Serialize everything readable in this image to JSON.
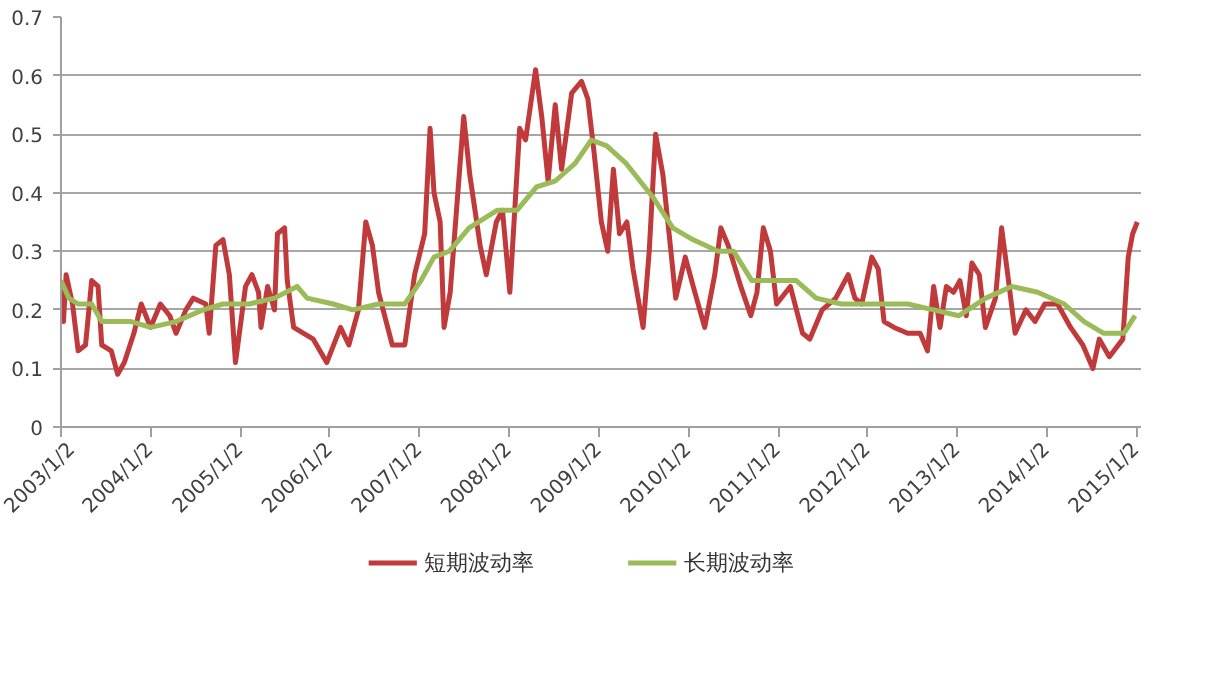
{
  "chart_data": {
    "type": "line",
    "xlim": [
      "2003-01-02",
      "2015-01-20"
    ],
    "ylim": [
      0,
      0.7
    ],
    "xticks": [
      {
        "value": "2003-01-02",
        "label": "2003/1/2"
      },
      {
        "value": "2004-01-02",
        "label": "2004/1/2"
      },
      {
        "value": "2005-01-02",
        "label": "2005/1/2"
      },
      {
        "value": "2006-01-02",
        "label": "2006/1/2"
      },
      {
        "value": "2007-01-02",
        "label": "2007/1/2"
      },
      {
        "value": "2008-01-02",
        "label": "2008/1/2"
      },
      {
        "value": "2009-01-02",
        "label": "2009/1/2"
      },
      {
        "value": "2010-01-02",
        "label": "2010/1/2"
      },
      {
        "value": "2011-01-02",
        "label": "2011/1/2"
      },
      {
        "value": "2012-01-02",
        "label": "2012/1/2"
      },
      {
        "value": "2013-01-02",
        "label": "2013/1/2"
      },
      {
        "value": "2014-01-02",
        "label": "2014/1/2"
      },
      {
        "value": "2015-01-02",
        "label": "2015/1/2"
      }
    ],
    "yticks": [
      0,
      0.1,
      0.2,
      0.3,
      0.4,
      0.5,
      0.6,
      0.7
    ],
    "grid": "y",
    "legend": "bottom",
    "line_style": "solid",
    "series": [
      {
        "name": "短期波动率",
        "color": "#c0393b",
        "x": [
          "2003-01-02",
          "2003-01-12",
          "2003-01-23",
          "2003-02-18",
          "2003-03-13",
          "2003-04-12",
          "2003-05-07",
          "2003-06-02",
          "2003-06-17",
          "2003-07-26",
          "2003-08-21",
          "2003-09-17",
          "2003-10-26",
          "2003-11-25",
          "2004-01-02",
          "2004-02-11",
          "2004-03-20",
          "2004-04-15",
          "2004-05-25",
          "2004-06-24",
          "2004-08-14",
          "2004-08-28",
          "2004-09-24",
          "2004-10-23",
          "2004-11-18",
          "2004-12-13",
          "2005-01-23",
          "2005-02-18",
          "2005-03-17",
          "2005-03-27",
          "2005-04-23",
          "2005-05-21",
          "2005-06-02",
          "2005-07-01",
          "2005-07-12",
          "2005-08-07",
          "2005-10-26",
          "2005-12-20",
          "2006-02-14",
          "2006-03-20",
          "2006-04-28",
          "2006-05-28",
          "2006-06-24",
          "2006-07-19",
          "2006-09-13",
          "2006-11-03",
          "2006-12-13",
          "2007-01-23",
          "2007-02-14",
          "2007-03-02",
          "2007-03-27",
          "2007-04-12",
          "2007-05-07",
          "2007-07-01",
          "2007-07-26",
          "2007-09-06",
          "2007-10-01",
          "2007-11-11",
          "2007-12-06",
          "2008-01-05",
          "2008-02-14",
          "2008-03-09",
          "2008-04-19",
          "2008-05-14",
          "2008-06-09",
          "2008-07-08",
          "2008-08-03",
          "2008-09-13",
          "2008-10-23",
          "2008-11-18",
          "2008-12-13",
          "2009-01-12",
          "2009-02-07",
          "2009-03-02",
          "2009-03-27",
          "2009-04-26",
          "2009-05-21",
          "2009-07-01",
          "2009-07-26",
          "2009-08-21",
          "2009-09-20",
          "2009-10-15",
          "2009-11-11",
          "2009-12-20",
          "2010-01-28",
          "2010-03-09",
          "2010-04-19",
          "2010-05-14",
          "2010-06-13",
          "2010-08-03",
          "2010-09-13",
          "2010-10-08",
          "2010-11-03",
          "2010-12-02",
          "2010-12-27",
          "2011-02-21",
          "2011-04-12",
          "2011-05-11",
          "2011-07-01",
          "2011-08-25",
          "2011-10-15",
          "2011-11-11",
          "2011-12-09",
          "2012-01-19",
          "2012-02-14",
          "2012-03-09",
          "2012-04-19",
          "2012-06-13",
          "2012-08-03",
          "2012-09-02",
          "2012-09-27",
          "2012-10-23",
          "2012-11-18",
          "2012-12-17",
          "2013-01-12",
          "2013-02-07",
          "2013-03-02",
          "2013-04-01",
          "2013-04-26",
          "2013-06-06",
          "2013-07-01",
          "2013-07-26",
          "2013-08-25",
          "2013-10-08",
          "2013-11-14",
          "2013-12-24",
          "2014-02-14",
          "2014-04-08",
          "2014-05-28",
          "2014-07-08",
          "2014-08-03",
          "2014-09-13",
          "2014-11-07",
          "2014-11-29",
          "2014-12-17",
          "2015-01-05"
        ],
        "values": [
          0.25,
          0.18,
          0.26,
          0.21,
          0.13,
          0.14,
          0.25,
          0.24,
          0.14,
          0.13,
          0.09,
          0.11,
          0.16,
          0.21,
          0.17,
          0.21,
          0.19,
          0.16,
          0.2,
          0.22,
          0.21,
          0.16,
          0.31,
          0.32,
          0.26,
          0.11,
          0.24,
          0.26,
          0.23,
          0.17,
          0.24,
          0.2,
          0.33,
          0.34,
          0.25,
          0.17,
          0.15,
          0.11,
          0.17,
          0.14,
          0.2,
          0.35,
          0.31,
          0.23,
          0.14,
          0.14,
          0.26,
          0.33,
          0.51,
          0.4,
          0.35,
          0.17,
          0.23,
          0.53,
          0.43,
          0.31,
          0.26,
          0.35,
          0.37,
          0.23,
          0.51,
          0.49,
          0.61,
          0.53,
          0.42,
          0.55,
          0.44,
          0.57,
          0.59,
          0.56,
          0.47,
          0.35,
          0.3,
          0.44,
          0.33,
          0.35,
          0.27,
          0.17,
          0.3,
          0.5,
          0.43,
          0.33,
          0.22,
          0.29,
          0.23,
          0.17,
          0.26,
          0.34,
          0.31,
          0.24,
          0.19,
          0.23,
          0.34,
          0.3,
          0.21,
          0.24,
          0.16,
          0.15,
          0.2,
          0.22,
          0.26,
          0.22,
          0.21,
          0.29,
          0.27,
          0.18,
          0.17,
          0.16,
          0.16,
          0.13,
          0.24,
          0.17,
          0.24,
          0.23,
          0.25,
          0.19,
          0.28,
          0.26,
          0.17,
          0.22,
          0.34,
          0.26,
          0.16,
          0.2,
          0.18,
          0.21,
          0.21,
          0.17,
          0.14,
          0.1,
          0.15,
          0.12,
          0.15,
          0.29,
          0.33,
          0.35
        ]
      },
      {
        "name": "长期波动率",
        "color": "#9bbb59",
        "x": [
          "2003-01-02",
          "2003-02-03",
          "2003-03-13",
          "2003-05-07",
          "2003-06-17",
          "2003-10-15",
          "2004-01-02",
          "2004-04-15",
          "2004-08-03",
          "2004-10-23",
          "2005-02-07",
          "2005-05-21",
          "2005-08-21",
          "2005-10-01",
          "2006-01-15",
          "2006-04-05",
          "2006-07-19",
          "2006-11-03",
          "2007-01-08",
          "2007-03-02",
          "2007-05-03",
          "2007-07-23",
          "2007-11-14",
          "2008-02-03",
          "2008-04-23",
          "2008-07-08",
          "2008-09-27",
          "2008-12-02",
          "2009-02-03",
          "2009-04-23",
          "2009-08-14",
          "2009-10-30",
          "2010-01-19",
          "2010-05-03",
          "2010-07-05",
          "2010-09-17",
          "2010-11-03",
          "2011-03-17",
          "2011-06-06",
          "2011-09-17",
          "2012-01-08",
          "2012-06-13",
          "2012-09-27",
          "2013-01-08",
          "2013-04-28",
          "2013-08-11",
          "2013-11-25",
          "2014-03-13",
          "2014-06-02",
          "2014-08-21",
          "2014-11-11",
          "2014-12-27"
        ],
        "values": [
          0.25,
          0.22,
          0.21,
          0.21,
          0.18,
          0.18,
          0.17,
          0.18,
          0.2,
          0.21,
          0.21,
          0.22,
          0.24,
          0.22,
          0.21,
          0.2,
          0.21,
          0.21,
          0.25,
          0.29,
          0.3,
          0.34,
          0.37,
          0.37,
          0.41,
          0.42,
          0.45,
          0.49,
          0.48,
          0.45,
          0.39,
          0.34,
          0.32,
          0.3,
          0.3,
          0.25,
          0.25,
          0.25,
          0.22,
          0.21,
          0.21,
          0.21,
          0.2,
          0.19,
          0.22,
          0.24,
          0.23,
          0.21,
          0.18,
          0.16,
          0.16,
          0.19
        ]
      }
    ]
  }
}
